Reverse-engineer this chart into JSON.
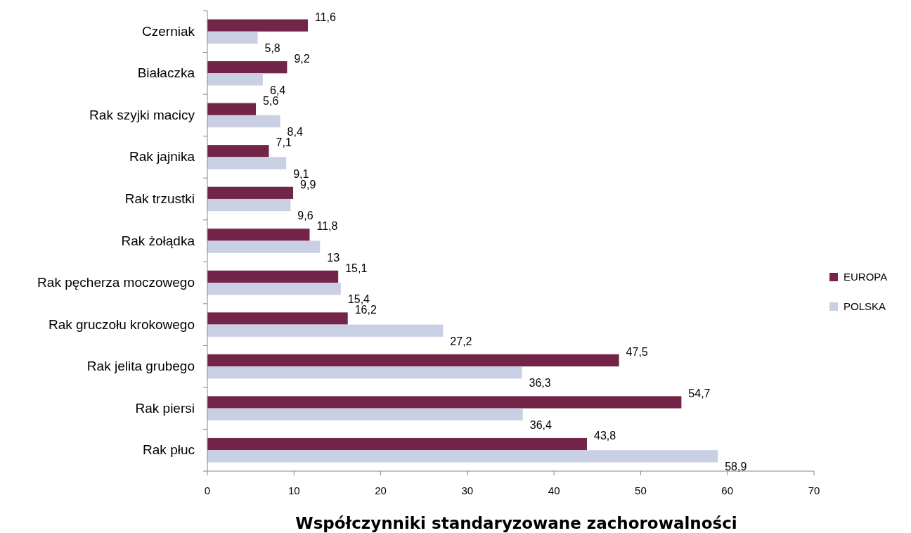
{
  "chart_data": {
    "type": "bar",
    "orientation": "horizontal",
    "xlabel": "Współczynniki standaryzowane zachorowalności",
    "categories": [
      "Czerniak",
      "Białaczka",
      "Rak szyjki macicy",
      "Rak jajnika",
      "Rak trzustki",
      "Rak żołądka",
      "Rak pęcherza moczowego",
      "Rak gruczołu krokowego",
      "Rak jelita grubego",
      "Rak piersi",
      "Rak płuc"
    ],
    "series": [
      {
        "name": "EUROPA",
        "color": "#722548",
        "values": [
          11.6,
          9.2,
          5.6,
          7.1,
          9.9,
          11.8,
          15.1,
          16.2,
          47.5,
          54.7,
          43.8
        ],
        "value_labels": [
          "11,6",
          "9,2",
          "5,6",
          "7,1",
          "9,9",
          "11,8",
          "15,1",
          "16,2",
          "47,5",
          "54,7",
          "43,8"
        ]
      },
      {
        "name": "POLSKA",
        "color": "#c9d0e3",
        "values": [
          5.8,
          6.4,
          8.4,
          9.1,
          9.6,
          13,
          15.4,
          27.2,
          36.3,
          36.4,
          58.9
        ],
        "value_labels": [
          "5,8",
          "6,4",
          "8,4",
          "9,1",
          "9,6",
          "13",
          "15,4",
          "27,2",
          "36,3",
          "36,4",
          "58,9"
        ]
      }
    ],
    "xlim": [
      0,
      70
    ],
    "xticks": [
      0,
      10,
      20,
      30,
      40,
      50,
      60,
      70
    ],
    "legend": "right",
    "grid": false
  }
}
